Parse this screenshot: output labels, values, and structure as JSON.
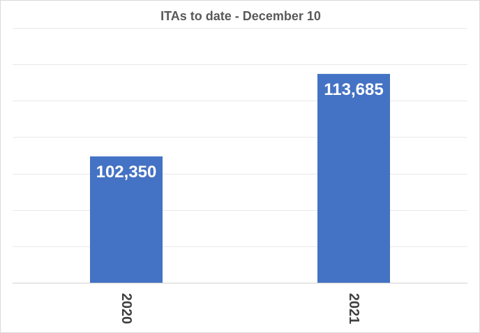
{
  "chart_data": {
    "type": "bar",
    "title": "ITAs to date - December 10",
    "categories": [
      "2020",
      "2021"
    ],
    "values": [
      102350,
      113685
    ],
    "data_labels": [
      "102,350",
      "113,685"
    ],
    "xlabel": "",
    "ylabel": "",
    "y_axis_labels_shown": false,
    "grid": true,
    "legend": "none",
    "bar_color": "#4472c4"
  }
}
